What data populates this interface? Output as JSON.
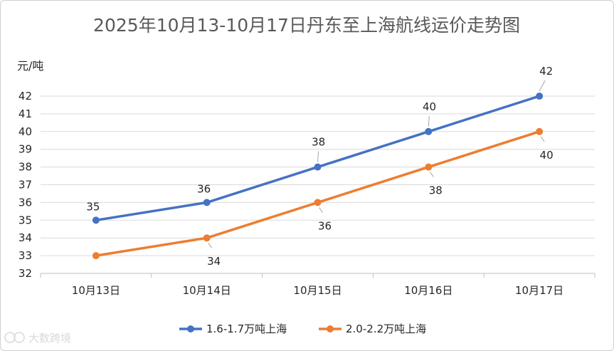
{
  "chart_data": {
    "type": "line",
    "title": "2025年10月13-10月17日丹东至上海航线运价走势图",
    "ylabel": "元/吨",
    "xlabel": "",
    "categories": [
      "10月13日",
      "10月14日",
      "10月15日",
      "10月16日",
      "10月17日"
    ],
    "ylim": [
      32,
      42
    ],
    "yticks": [
      32,
      33,
      34,
      35,
      36,
      37,
      38,
      39,
      40,
      41,
      42
    ],
    "grid": true,
    "legend_position": "bottom",
    "series": [
      {
        "name": "1.6-1.7万吨上海",
        "values": [
          35,
          36,
          38,
          40,
          42
        ],
        "color": "#4472C4"
      },
      {
        "name": "2.0-2.2万吨上海",
        "values": [
          33,
          34,
          36,
          38,
          40
        ],
        "color": "#ED7D31"
      }
    ]
  },
  "watermark": {
    "text": "大数跨境"
  }
}
